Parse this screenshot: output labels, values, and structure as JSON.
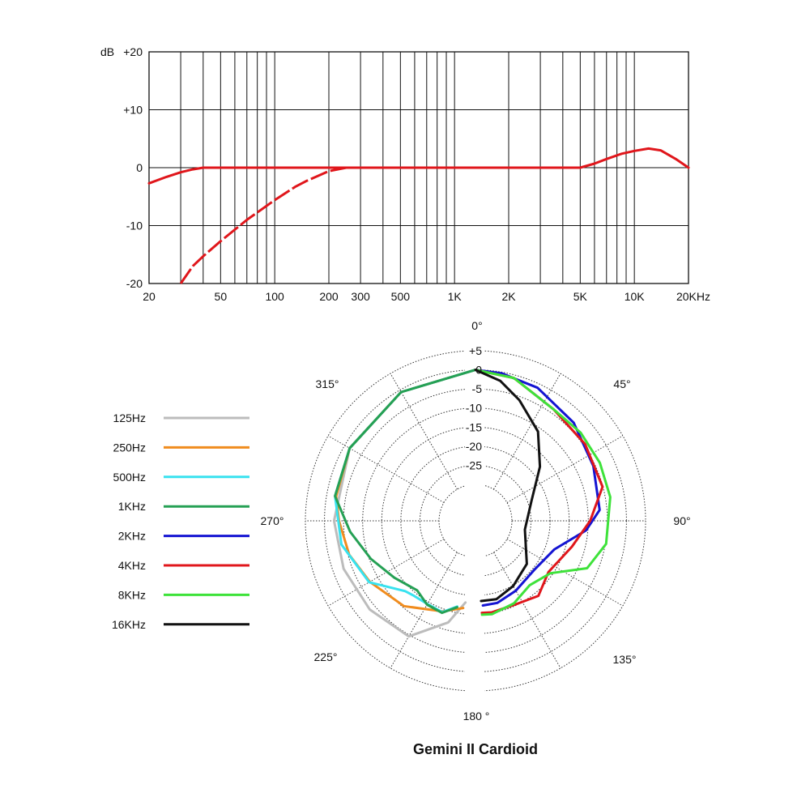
{
  "chart_data": [
    {
      "type": "line",
      "x_scale": "log",
      "xlim": [
        20,
        20000
      ],
      "ylim": [
        -20,
        20
      ],
      "grid": true,
      "ylabel": "dB",
      "y_ticks": [
        {
          "value": 20,
          "label": "+20"
        },
        {
          "value": 10,
          "label": "+10"
        },
        {
          "value": 0,
          "label": "0"
        },
        {
          "value": -10,
          "label": "-10"
        },
        {
          "value": -20,
          "label": "-20"
        }
      ],
      "x_ticks": [
        {
          "value": 20,
          "label": "20"
        },
        {
          "value": 50,
          "label": "50"
        },
        {
          "value": 100,
          "label": "100"
        },
        {
          "value": 200,
          "label": "200"
        },
        {
          "value": 300,
          "label": "300"
        },
        {
          "value": 500,
          "label": "500"
        },
        {
          "value": 1000,
          "label": "1K"
        },
        {
          "value": 2000,
          "label": "2K"
        },
        {
          "value": 5000,
          "label": "5K"
        },
        {
          "value": 10000,
          "label": "10K"
        },
        {
          "value": 20000,
          "label": "20KHz"
        }
      ],
      "series": [
        {
          "color": "#e0161b",
          "dash": "solid",
          "points": [
            [
              20,
              -2.7
            ],
            [
              25,
              -1.6
            ],
            [
              30,
              -0.8
            ],
            [
              35,
              -0.3
            ],
            [
              40,
              0
            ],
            [
              100,
              0
            ],
            [
              200,
              0
            ],
            [
              300,
              0
            ],
            [
              1000,
              0
            ],
            [
              2000,
              0
            ],
            [
              5000,
              0
            ],
            [
              6000,
              0.7
            ],
            [
              7000,
              1.5
            ],
            [
              8500,
              2.4
            ],
            [
              10000,
              2.9
            ],
            [
              12000,
              3.3
            ],
            [
              14000,
              3.0
            ],
            [
              17000,
              1.5
            ],
            [
              20000,
              0
            ]
          ]
        },
        {
          "color": "#e0161b",
          "dash": "dashed",
          "points": [
            [
              30,
              -20
            ],
            [
              35,
              -17
            ],
            [
              40,
              -15.3
            ],
            [
              50,
              -12.7
            ],
            [
              70,
              -9
            ],
            [
              100,
              -5.6
            ],
            [
              130,
              -3.3
            ],
            [
              150,
              -2.3
            ],
            [
              200,
              -0.6
            ],
            [
              250,
              0
            ],
            [
              300,
              0
            ]
          ]
        }
      ]
    },
    {
      "type": "polar",
      "title": "Gemini II Cardioid",
      "r_unit": "dB",
      "r_range": [
        -30,
        5
      ],
      "r_ticks": [
        {
          "value": 5,
          "label": "+5"
        },
        {
          "value": 0,
          "label": "0"
        },
        {
          "value": -5,
          "label": "-5"
        },
        {
          "value": -10,
          "label": "-10"
        },
        {
          "value": -15,
          "label": "-15"
        },
        {
          "value": -20,
          "label": "-20"
        },
        {
          "value": -25,
          "label": "-25"
        }
      ],
      "angle_labels": [
        {
          "angle": 0,
          "label": "0°"
        },
        {
          "angle": 45,
          "label": "45°"
        },
        {
          "angle": 90,
          "label": "90°"
        },
        {
          "angle": 135,
          "label": "135°"
        },
        {
          "angle": 180,
          "label": "180 °"
        },
        {
          "angle": 225,
          "label": "225°"
        },
        {
          "angle": 270,
          "label": "270°"
        },
        {
          "angle": 315,
          "label": "315°"
        }
      ],
      "series": [
        {
          "name": "125Hz",
          "color": "#bcbcbc",
          "side": "left",
          "points": [
            [
              0,
              0
            ],
            [
              30,
              -0.6
            ],
            [
              60,
              -1.5
            ],
            [
              90,
              -2.5
            ],
            [
              110,
              -2.8
            ],
            [
              130,
              -3.4
            ],
            [
              150,
              -4.6
            ],
            [
              165,
              -12
            ],
            [
              173,
              -18
            ]
          ]
        },
        {
          "name": "250Hz",
          "color": "#f08c1e",
          "side": "left",
          "points": [
            [
              0,
              0
            ],
            [
              30,
              -0.6
            ],
            [
              60,
              -1.5
            ],
            [
              80,
              -2.5
            ],
            [
              90,
              -3.8
            ],
            [
              105,
              -5.3
            ],
            [
              120,
              -7.6
            ],
            [
              140,
              -10.4
            ],
            [
              160,
              -14.3
            ],
            [
              172,
              -16.5
            ]
          ]
        },
        {
          "name": "500Hz",
          "color": "#38e2ef",
          "side": "left",
          "points": [
            [
              0,
              0
            ],
            [
              30,
              -0.6
            ],
            [
              60,
              -1.5
            ],
            [
              80,
              -2.2
            ],
            [
              100,
              -3.9
            ],
            [
              120,
              -7.4
            ],
            [
              135,
              -13.5
            ],
            [
              140,
              -14.1
            ],
            [
              150,
              -14.4
            ],
            [
              160,
              -14.1
            ],
            [
              168,
              -16.6
            ]
          ]
        },
        {
          "name": "1KHz",
          "color": "#25a054",
          "side": "left",
          "points": [
            [
              0,
              0
            ],
            [
              30,
              -0.6
            ],
            [
              60,
              -1.5
            ],
            [
              80,
              -2.2
            ],
            [
              95,
              -6.6
            ],
            [
              110,
              -10.4
            ],
            [
              125,
              -13.6
            ],
            [
              140,
              -15.8
            ],
            [
              150,
              -14.2
            ],
            [
              160,
              -13.9
            ],
            [
              168,
              -16.4
            ]
          ]
        },
        {
          "name": "2KHz",
          "color": "#1414d2",
          "side": "right",
          "points": [
            [
              0,
              0
            ],
            [
              10,
              -0.3
            ],
            [
              25,
              -1.1
            ],
            [
              45,
              -3.2
            ],
            [
              65,
              -5.5
            ],
            [
              85,
              -6.9
            ],
            [
              95,
              -10.5
            ],
            [
              110,
              -17.6
            ],
            [
              130,
              -19.5
            ],
            [
              150,
              -18.4
            ],
            [
              165,
              -17.3
            ],
            [
              175,
              -17.3
            ]
          ]
        },
        {
          "name": "4KHz",
          "color": "#e0161b",
          "side": "right",
          "points": [
            [
              0,
              0
            ],
            [
              15,
              -0.8
            ],
            [
              35,
              -3.9
            ],
            [
              55,
              -4.5
            ],
            [
              75,
              -5.1
            ],
            [
              90,
              -9.5
            ],
            [
              105,
              -13.4
            ],
            [
              125,
              -16.2
            ],
            [
              140,
              -13.9
            ],
            [
              155,
              -15.3
            ],
            [
              170,
              -15.2
            ],
            [
              176,
              -15.4
            ]
          ]
        },
        {
          "name": "8KHz",
          "color": "#3ee23a",
          "side": "right",
          "points": [
            [
              0,
              0
            ],
            [
              15,
              -0.8
            ],
            [
              35,
              -3.9
            ],
            [
              50,
              -3.6
            ],
            [
              65,
              -3.6
            ],
            [
              80,
              -3.7
            ],
            [
              100,
              -4.8
            ],
            [
              113,
              -7.8
            ],
            [
              125,
              -15.6
            ],
            [
              140,
              -17.5
            ],
            [
              155,
              -15.7
            ],
            [
              170,
              -14.7
            ],
            [
              176,
              -14.9
            ]
          ]
        },
        {
          "name": "16KHz",
          "color": "#111111",
          "side": "right",
          "points": [
            [
              0,
              0
            ],
            [
              10,
              -2.3
            ],
            [
              20,
              -5.9
            ],
            [
              35,
              -11
            ],
            [
              50,
              -17.5
            ],
            [
              70,
              -23.9
            ],
            [
              100,
              -26.4
            ],
            [
              130,
              -22
            ],
            [
              150,
              -19.8
            ],
            [
              165,
              -18.3
            ],
            [
              176,
              -18.5
            ]
          ]
        }
      ]
    }
  ]
}
